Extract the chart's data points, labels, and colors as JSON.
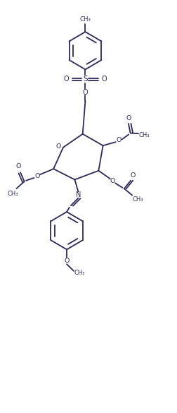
{
  "bg_color": "#ffffff",
  "line_color": "#2a2a5a",
  "line_width": 1.3,
  "figsize": [
    2.53,
    5.85
  ],
  "dpi": 100,
  "xlim": [
    0,
    10
  ],
  "ylim": [
    0,
    23
  ]
}
